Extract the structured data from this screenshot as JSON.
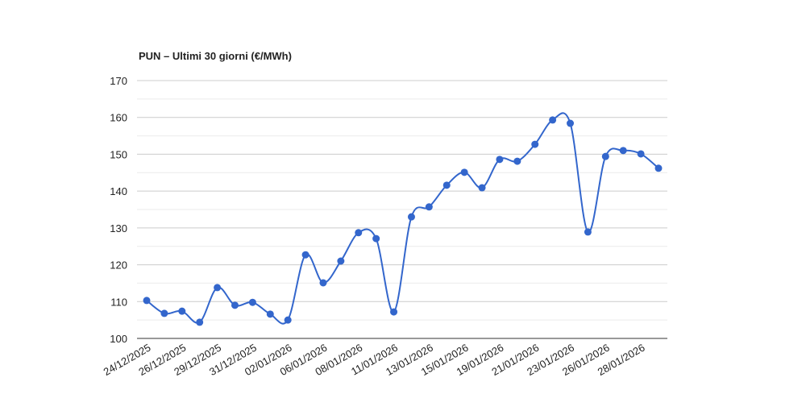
{
  "chart_data": {
    "type": "line",
    "title": "PUN – Ultimi 30 giorni (€/MWh)",
    "categories": [
      "24/12/2025",
      null,
      "26/12/2025",
      null,
      "29/12/2025",
      null,
      "31/12/2025",
      null,
      "02/01/2026",
      null,
      "06/01/2026",
      null,
      "08/01/2026",
      null,
      "11/01/2026",
      null,
      "13/01/2026",
      null,
      "15/01/2026",
      null,
      "19/01/2026",
      null,
      "21/01/2026",
      null,
      "23/01/2026",
      null,
      "26/01/2026",
      null,
      "28/01/2026",
      null
    ],
    "series": [
      {
        "name": "PUN",
        "color": "#3366cc",
        "values": [
          110.3,
          106.8,
          107.4,
          104.4,
          113.8,
          109.0,
          109.8,
          106.6,
          105.0,
          122.7,
          115.1,
          121.0,
          128.7,
          127.1,
          107.2,
          133.0,
          135.7,
          141.6,
          145.1,
          140.9,
          148.6,
          148.1,
          152.7,
          159.3,
          158.4,
          128.9,
          149.4,
          151.0,
          150.1,
          146.2
        ]
      }
    ],
    "ylim": [
      100,
      170
    ],
    "yticks": [
      100,
      110,
      120,
      130,
      140,
      150,
      160,
      170
    ],
    "minor_yticks": [
      105,
      115,
      125,
      135,
      145,
      155,
      165
    ],
    "grid": true,
    "smooth": true
  }
}
